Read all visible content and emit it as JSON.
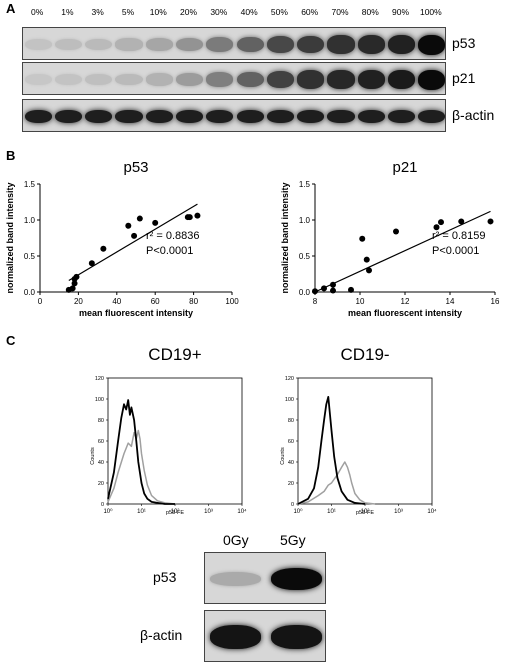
{
  "panel_a": {
    "letter": "A",
    "lane_labels": [
      "0%",
      "1%",
      "3%",
      "5%",
      "10%",
      "20%",
      "30%",
      "40%",
      "50%",
      "60%",
      "70%",
      "80%",
      "90%",
      "100%"
    ],
    "blots": [
      {
        "label": "p53",
        "intensity": [
          0.05,
          0.08,
          0.1,
          0.14,
          0.2,
          0.3,
          0.42,
          0.55,
          0.68,
          0.75,
          0.8,
          0.84,
          0.88,
          1.0
        ]
      },
      {
        "label": "p21",
        "intensity": [
          0.03,
          0.05,
          0.07,
          0.1,
          0.14,
          0.25,
          0.4,
          0.55,
          0.72,
          0.8,
          0.85,
          0.88,
          0.92,
          1.0
        ]
      },
      {
        "label": "β-actin",
        "intensity": [
          0.9,
          0.9,
          0.9,
          0.9,
          0.9,
          0.9,
          0.9,
          0.9,
          0.9,
          0.9,
          0.9,
          0.9,
          0.9,
          0.9
        ]
      }
    ]
  },
  "panel_b": {
    "letter": "B"
  },
  "panel_c": {
    "letter": "C",
    "flow_titles": [
      "CD19+",
      "CD19-"
    ],
    "y_axis_label": "Counts",
    "x_axis_label": "p53-FE",
    "y_ticks": [
      "0",
      "20",
      "40",
      "60",
      "80",
      "100",
      "120"
    ],
    "x_ticks": [
      "10⁰",
      "10¹",
      "10²",
      "10³",
      "10⁴"
    ],
    "dose_labels": [
      "0Gy",
      "5Gy"
    ],
    "blots": [
      {
        "label": "p53",
        "intensity": [
          0.18,
          1.0
        ]
      },
      {
        "label": "β-actin",
        "intensity": [
          0.95,
          0.95
        ]
      }
    ]
  },
  "chart_data": [
    {
      "type": "scatter",
      "title": "p53",
      "xlabel": "mean fluorescent intensity",
      "ylabel": "normalized band intensity",
      "xlim": [
        0,
        100
      ],
      "ylim": [
        0,
        1.5
      ],
      "xticks": [
        0,
        20,
        40,
        60,
        80,
        100
      ],
      "yticks": [
        0.0,
        0.5,
        1.0,
        1.5
      ],
      "x": [
        15,
        17,
        18,
        18,
        19,
        27,
        33,
        46,
        49,
        52,
        60,
        77,
        78,
        82
      ],
      "y": [
        0.03,
        0.05,
        0.12,
        0.18,
        0.21,
        0.4,
        0.6,
        0.92,
        0.78,
        1.02,
        0.96,
        1.04,
        1.04,
        1.06
      ],
      "fit_line": {
        "x": [
          15,
          82
        ],
        "y": [
          0.16,
          1.22
        ]
      },
      "annotations": [
        "r² = 0.8836",
        "P<0.0001"
      ]
    },
    {
      "type": "scatter",
      "title": "p21",
      "xlabel": "mean fluorescent intensity",
      "ylabel": "normalized band intensity",
      "xlim": [
        8,
        16
      ],
      "ylim": [
        0,
        1.5
      ],
      "xticks": [
        8,
        10,
        12,
        14,
        16
      ],
      "yticks": [
        0.0,
        0.5,
        1.0,
        1.5
      ],
      "x": [
        8.0,
        8.4,
        8.8,
        8.8,
        9.6,
        10.1,
        10.3,
        10.4,
        11.6,
        13.4,
        13.6,
        14.5,
        15.8
      ],
      "y": [
        0.01,
        0.05,
        0.1,
        0.02,
        0.03,
        0.74,
        0.45,
        0.3,
        0.84,
        0.9,
        0.97,
        0.98,
        0.98
      ],
      "fit_line": {
        "x": [
          8.0,
          15.8
        ],
        "y": [
          0.0,
          1.12
        ]
      },
      "annotations": [
        "r² = 0.8159",
        "P<0.0001"
      ]
    },
    {
      "type": "line",
      "title": "CD19+",
      "xlabel": "p53-FE",
      "ylabel": "Counts",
      "xscale": "log",
      "xlim": [
        1,
        10000
      ],
      "ylim": [
        0,
        120
      ],
      "series": [
        {
          "color": "#000000",
          "x": [
            1,
            1.5,
            2,
            2.5,
            3,
            3.5,
            4,
            4.5,
            5,
            6,
            7,
            8,
            10,
            12,
            15,
            20,
            30,
            50,
            100
          ],
          "y": [
            5,
            30,
            60,
            82,
            95,
            90,
            99,
            85,
            92,
            80,
            60,
            40,
            20,
            10,
            5,
            2,
            1,
            0,
            0
          ]
        },
        {
          "color": "#a0a0a0",
          "x": [
            1,
            1.5,
            2,
            3,
            4,
            5,
            6,
            7,
            8,
            9,
            10,
            12,
            15,
            20,
            30,
            50,
            100
          ],
          "y": [
            2,
            15,
            30,
            48,
            58,
            55,
            68,
            62,
            70,
            62,
            48,
            32,
            18,
            8,
            3,
            1,
            0
          ]
        }
      ]
    },
    {
      "type": "line",
      "title": "CD19-",
      "xlabel": "p53-FE",
      "ylabel": "Counts",
      "xscale": "log",
      "xlim": [
        1,
        10000
      ],
      "ylim": [
        0,
        120
      ],
      "series": [
        {
          "color": "#000000",
          "x": [
            1,
            2,
            3,
            4,
            5,
            6,
            7,
            8,
            9,
            10,
            12,
            15,
            20,
            30,
            50,
            100
          ],
          "y": [
            0,
            5,
            15,
            35,
            60,
            80,
            95,
            102,
            85,
            70,
            45,
            25,
            12,
            4,
            1,
            0
          ]
        },
        {
          "color": "#a0a0a0",
          "x": [
            1,
            2,
            4,
            6,
            8,
            10,
            15,
            20,
            25,
            30,
            35,
            40,
            50,
            70,
            100,
            200
          ],
          "y": [
            0,
            2,
            8,
            12,
            18,
            20,
            28,
            35,
            40,
            35,
            28,
            20,
            10,
            4,
            1,
            0
          ]
        }
      ]
    }
  ]
}
